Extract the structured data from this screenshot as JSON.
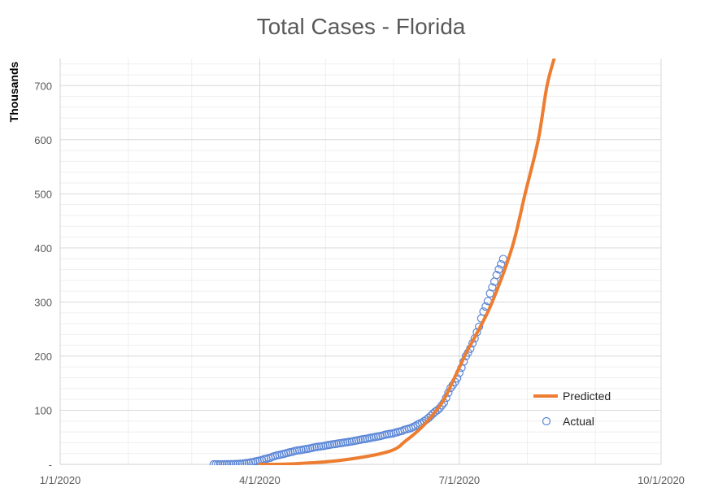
{
  "chart_data": {
    "type": "line",
    "title": "Total Cases - Florida",
    "xlabel": "",
    "ylabel": "Thousands",
    "xlim": [
      "2020-01-01",
      "2020-10-01"
    ],
    "ylim": [
      0,
      750
    ],
    "x_ticks": [
      "1/1/2020",
      "4/1/2020",
      "7/1/2020",
      "10/1/2020"
    ],
    "x_tick_dates": [
      "2020-01-01",
      "2020-04-01",
      "2020-07-01",
      "2020-10-01"
    ],
    "y_ticks": [
      0,
      100,
      200,
      300,
      400,
      500,
      600,
      700
    ],
    "y_tick_labels": [
      "-",
      "100",
      "200",
      "300",
      "400",
      "500",
      "600",
      "700"
    ],
    "grid": true,
    "legend_position": "bottom-right",
    "series": [
      {
        "name": "Predicted",
        "kind": "line",
        "color": "#ED7D31",
        "points": [
          [
            "2020-04-01",
            0
          ],
          [
            "2020-04-16",
            1
          ],
          [
            "2020-05-08",
            7.5
          ],
          [
            "2020-05-30",
            24
          ],
          [
            "2020-06-07",
            45
          ],
          [
            "2020-06-14",
            69
          ],
          [
            "2020-06-19",
            92
          ],
          [
            "2020-06-24",
            120
          ],
          [
            "2020-07-01",
            179
          ],
          [
            "2020-07-04",
            205
          ],
          [
            "2020-07-10",
            250
          ],
          [
            "2020-07-16",
            300
          ],
          [
            "2020-07-25",
            400
          ],
          [
            "2020-07-31",
            500
          ],
          [
            "2020-08-06",
            600
          ],
          [
            "2020-08-10",
            700
          ],
          [
            "2020-08-14",
            760
          ]
        ]
      },
      {
        "name": "Actual",
        "kind": "scatter",
        "color": "#5B86D6",
        "start_date": "2020-03-11",
        "daily_values": [
          0.03,
          0.04,
          0.05,
          0.07,
          0.1,
          0.14,
          0.19,
          0.3,
          0.4,
          0.5,
          0.6,
          0.8,
          1.2,
          1.4,
          1.7,
          2.4,
          2.9,
          3.8,
          4.0,
          5.5,
          6.3,
          7.0,
          8.0,
          9.6,
          10.3,
          11.5,
          12.4,
          14.3,
          15.5,
          16.8,
          17.5,
          18.5,
          19.4,
          20.6,
          21.6,
          22.5,
          23.3,
          24.7,
          25.5,
          26.0,
          26.7,
          27.5,
          28.3,
          28.8,
          29.6,
          30.5,
          31.5,
          32.1,
          32.8,
          33.2,
          33.7,
          34.7,
          35.5,
          36.1,
          36.9,
          37.4,
          38.0,
          38.8,
          39.2,
          39.8,
          40.6,
          41.0,
          41.9,
          42.4,
          43.2,
          44.0,
          44.8,
          45.6,
          46.4,
          47.0,
          47.5,
          48.7,
          49.4,
          50.1,
          50.9,
          51.7,
          52.3,
          53.3,
          54.5,
          55.4,
          56.2,
          56.8,
          57.4,
          58.8,
          59.9,
          61.0,
          62.0,
          64.0,
          64.9,
          66.0,
          67.3,
          69.1,
          71.0,
          73.5,
          75.6,
          77.3,
          80.1,
          82.7,
          85.9,
          89.7,
          93.8,
          97.3,
          100.2,
          103.5,
          109.0,
          114.0,
          122.9,
          132.5,
          141.1,
          146.3,
          152.4,
          158.9,
          169.1,
          178.6,
          190.0,
          200.1,
          206.4,
          213.8,
          223.8,
          232.7,
          244.2,
          254.5,
          269.8,
          282.4,
          291.6,
          301.8,
          315.8,
          327.2,
          337.6,
          350.0,
          360.4,
          369.8,
          379.6
        ]
      }
    ]
  }
}
